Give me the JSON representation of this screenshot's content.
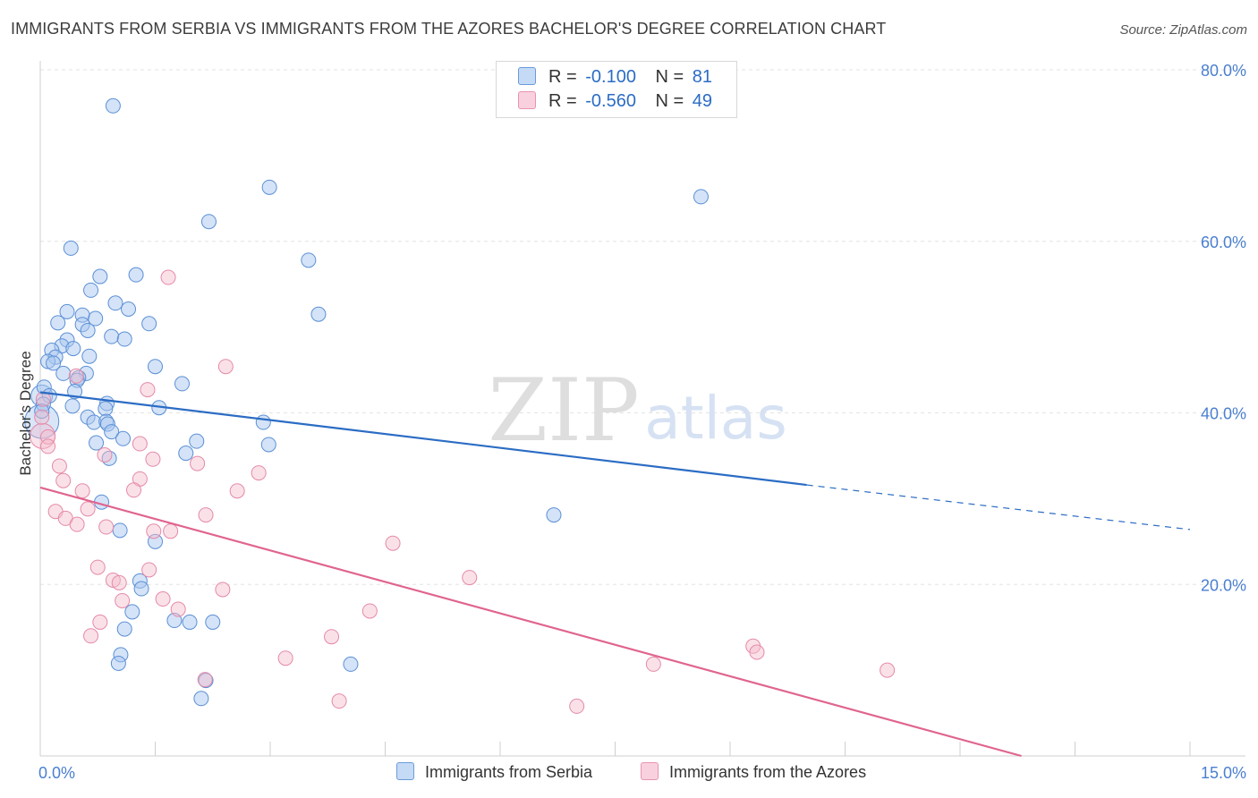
{
  "header": {
    "title": "IMMIGRANTS FROM SERBIA VS IMMIGRANTS FROM THE AZORES BACHELOR'S DEGREE CORRELATION CHART",
    "source": "Source: ZipAtlas.com"
  },
  "watermark": {
    "zip": "ZIP",
    "atlas": "atlas"
  },
  "legend": {
    "r_label": "R =",
    "n_label": "N =",
    "rows": [
      {
        "r": "-0.100",
        "n": "81"
      },
      {
        "r": "-0.560",
        "n": "49"
      }
    ]
  },
  "colors": {
    "serbia_fill": "#a9c8f0",
    "serbia_stroke": "#5b8fd6",
    "serbia_line": "#2b6cc4",
    "azores_fill": "#f5bccd",
    "azores_stroke": "#e58aa8",
    "azores_line": "#e0648f"
  },
  "chart_data": {
    "type": "scatter",
    "title": "IMMIGRANTS FROM SERBIA VS IMMIGRANTS FROM THE AZORES BACHELOR'S DEGREE CORRELATION CHART",
    "xlabel": "",
    "ylabel": "Bachelor's Degree",
    "xlim": [
      0,
      15
    ],
    "ylim": [
      0,
      80
    ],
    "x_tick_labels": [
      "0.0%",
      "15.0%"
    ],
    "y_ticks": [
      20,
      40,
      60,
      80
    ],
    "y_tick_labels": [
      "20.0%",
      "40.0%",
      "60.0%",
      "80.0%"
    ],
    "grid": true,
    "legend_position": "top-center",
    "series": [
      {
        "name": "Immigrants from Serbia",
        "r": -0.1,
        "n": 81,
        "trend": {
          "x": [
            0,
            10,
            15
          ],
          "y": [
            42.4,
            31.6,
            26.4
          ],
          "solid_until": 10
        },
        "points": [
          [
            0.95,
            75.8
          ],
          [
            2.99,
            66.3
          ],
          [
            8.62,
            65.2
          ],
          [
            2.2,
            62.3
          ],
          [
            0.4,
            59.2
          ],
          [
            3.5,
            57.8
          ],
          [
            1.25,
            56.1
          ],
          [
            0.78,
            55.9
          ],
          [
            0.66,
            54.3
          ],
          [
            0.98,
            52.8
          ],
          [
            1.15,
            52.1
          ],
          [
            0.35,
            51.8
          ],
          [
            0.55,
            51.4
          ],
          [
            0.72,
            51
          ],
          [
            3.63,
            51.5
          ],
          [
            0.23,
            50.5
          ],
          [
            0.55,
            50.3
          ],
          [
            1.42,
            50.4
          ],
          [
            0.62,
            49.6
          ],
          [
            0.93,
            48.9
          ],
          [
            0.35,
            48.5
          ],
          [
            1.1,
            48.6
          ],
          [
            0.28,
            47.8
          ],
          [
            0.43,
            47.5
          ],
          [
            0.15,
            47.3
          ],
          [
            0.2,
            46.5
          ],
          [
            0.64,
            46.6
          ],
          [
            0.1,
            46
          ],
          [
            0.17,
            45.8
          ],
          [
            1.5,
            45.4
          ],
          [
            0.3,
            44.6
          ],
          [
            0.6,
            44.6
          ],
          [
            0.5,
            44.1
          ],
          [
            0.48,
            43.8
          ],
          [
            1.85,
            43.4
          ],
          [
            0.05,
            43
          ],
          [
            0.45,
            42.5
          ],
          [
            0.12,
            42
          ],
          [
            0.04,
            41
          ],
          [
            0.87,
            41.1
          ],
          [
            0.42,
            40.8
          ],
          [
            0.85,
            40.5
          ],
          [
            1.55,
            40.6
          ],
          [
            0.02,
            40.2
          ],
          [
            0.62,
            39.5
          ],
          [
            0.7,
            38.9
          ],
          [
            0.86,
            39
          ],
          [
            2.91,
            38.9
          ],
          [
            0.88,
            38.7
          ],
          [
            0.93,
            37.8
          ],
          [
            1.08,
            37
          ],
          [
            2.04,
            36.7
          ],
          [
            0.73,
            36.5
          ],
          [
            2.98,
            36.3
          ],
          [
            1.9,
            35.3
          ],
          [
            0.9,
            34.7
          ],
          [
            0.8,
            29.6
          ],
          [
            6.7,
            28.1
          ],
          [
            1.04,
            26.3
          ],
          [
            1.5,
            25
          ],
          [
            1.3,
            20.4
          ],
          [
            1.32,
            19.5
          ],
          [
            1.2,
            16.8
          ],
          [
            1.75,
            15.8
          ],
          [
            1.95,
            15.6
          ],
          [
            2.25,
            15.6
          ],
          [
            1.1,
            14.8
          ],
          [
            1.05,
            11.8
          ],
          [
            1.02,
            10.8
          ],
          [
            4.05,
            10.7
          ],
          [
            2.16,
            8.8
          ],
          [
            2.1,
            6.7
          ]
        ]
      },
      {
        "name": "Immigrants from the Azores",
        "r": -0.56,
        "n": 49,
        "trend": {
          "x": [
            0,
            12.8
          ],
          "y": [
            31.3,
            0
          ]
        },
        "points": [
          [
            1.67,
            55.8
          ],
          [
            2.42,
            45.4
          ],
          [
            0.47,
            44.3
          ],
          [
            1.4,
            42.7
          ],
          [
            0.04,
            41.6
          ],
          [
            0.02,
            39.5
          ],
          [
            0.1,
            37.2
          ],
          [
            0.1,
            36.1
          ],
          [
            1.3,
            36.4
          ],
          [
            0.84,
            35.1
          ],
          [
            1.47,
            34.6
          ],
          [
            2.05,
            34.1
          ],
          [
            0.25,
            33.8
          ],
          [
            2.85,
            33
          ],
          [
            1.3,
            32.3
          ],
          [
            0.3,
            32.1
          ],
          [
            1.22,
            31
          ],
          [
            0.55,
            30.9
          ],
          [
            2.57,
            30.9
          ],
          [
            0.62,
            28.8
          ],
          [
            0.2,
            28.5
          ],
          [
            2.16,
            28.1
          ],
          [
            0.33,
            27.7
          ],
          [
            0.48,
            27
          ],
          [
            0.86,
            26.7
          ],
          [
            1.48,
            26.2
          ],
          [
            1.7,
            26.2
          ],
          [
            4.6,
            24.8
          ],
          [
            0.75,
            22
          ],
          [
            1.42,
            21.7
          ],
          [
            5.6,
            20.8
          ],
          [
            0.95,
            20.5
          ],
          [
            1.03,
            20.2
          ],
          [
            2.38,
            19.4
          ],
          [
            1.6,
            18.3
          ],
          [
            1.07,
            18.1
          ],
          [
            1.8,
            17.1
          ],
          [
            4.3,
            16.9
          ],
          [
            0.78,
            15.6
          ],
          [
            0.66,
            14
          ],
          [
            3.8,
            13.9
          ],
          [
            9.3,
            12.8
          ],
          [
            9.35,
            12.1
          ],
          [
            3.2,
            11.4
          ],
          [
            8.0,
            10.7
          ],
          [
            11.05,
            10.0
          ],
          [
            2.15,
            8.9
          ],
          [
            3.9,
            6.4
          ],
          [
            7.0,
            5.8
          ]
        ]
      }
    ]
  },
  "bottom_legend": {
    "items": [
      {
        "label": "Immigrants from Serbia"
      },
      {
        "label": "Immigrants from the Azores"
      }
    ]
  }
}
